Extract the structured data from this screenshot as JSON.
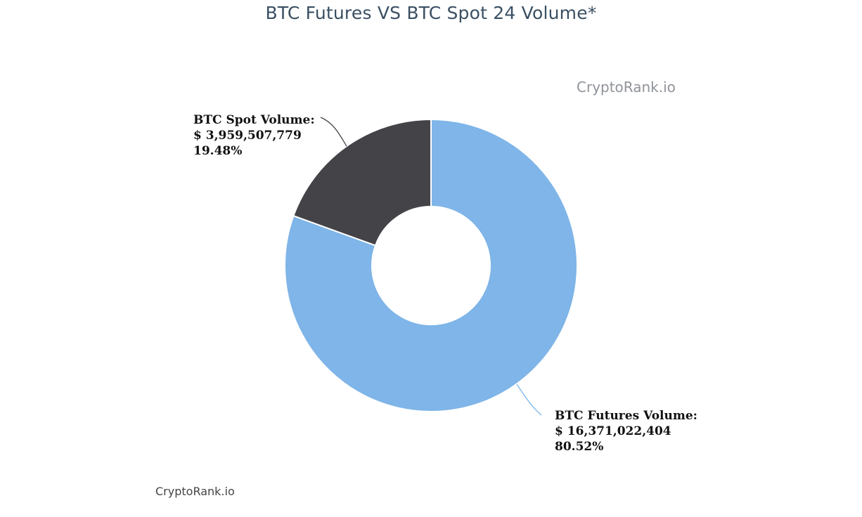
{
  "title": "BTC Futures VS BTC Spot 24 Volume*",
  "watermark": "CryptoRank.io",
  "credit": "CryptoRank.io",
  "chart_data": {
    "type": "pie",
    "title": "BTC Futures VS BTC Spot 24 Volume*",
    "donut": true,
    "slices": [
      {
        "name": "BTC Futures Volume:",
        "value": 16371022404,
        "value_label": "$ 16,371,022,404",
        "percent": 80.52,
        "percent_label": "80.52%",
        "color": "#7fb5e8"
      },
      {
        "name": "BTC Spot Volume:",
        "value": 3959507779,
        "value_label": "$ 3,959,507,779",
        "percent": 19.48,
        "percent_label": "19.48%",
        "color": "#434348"
      }
    ]
  }
}
